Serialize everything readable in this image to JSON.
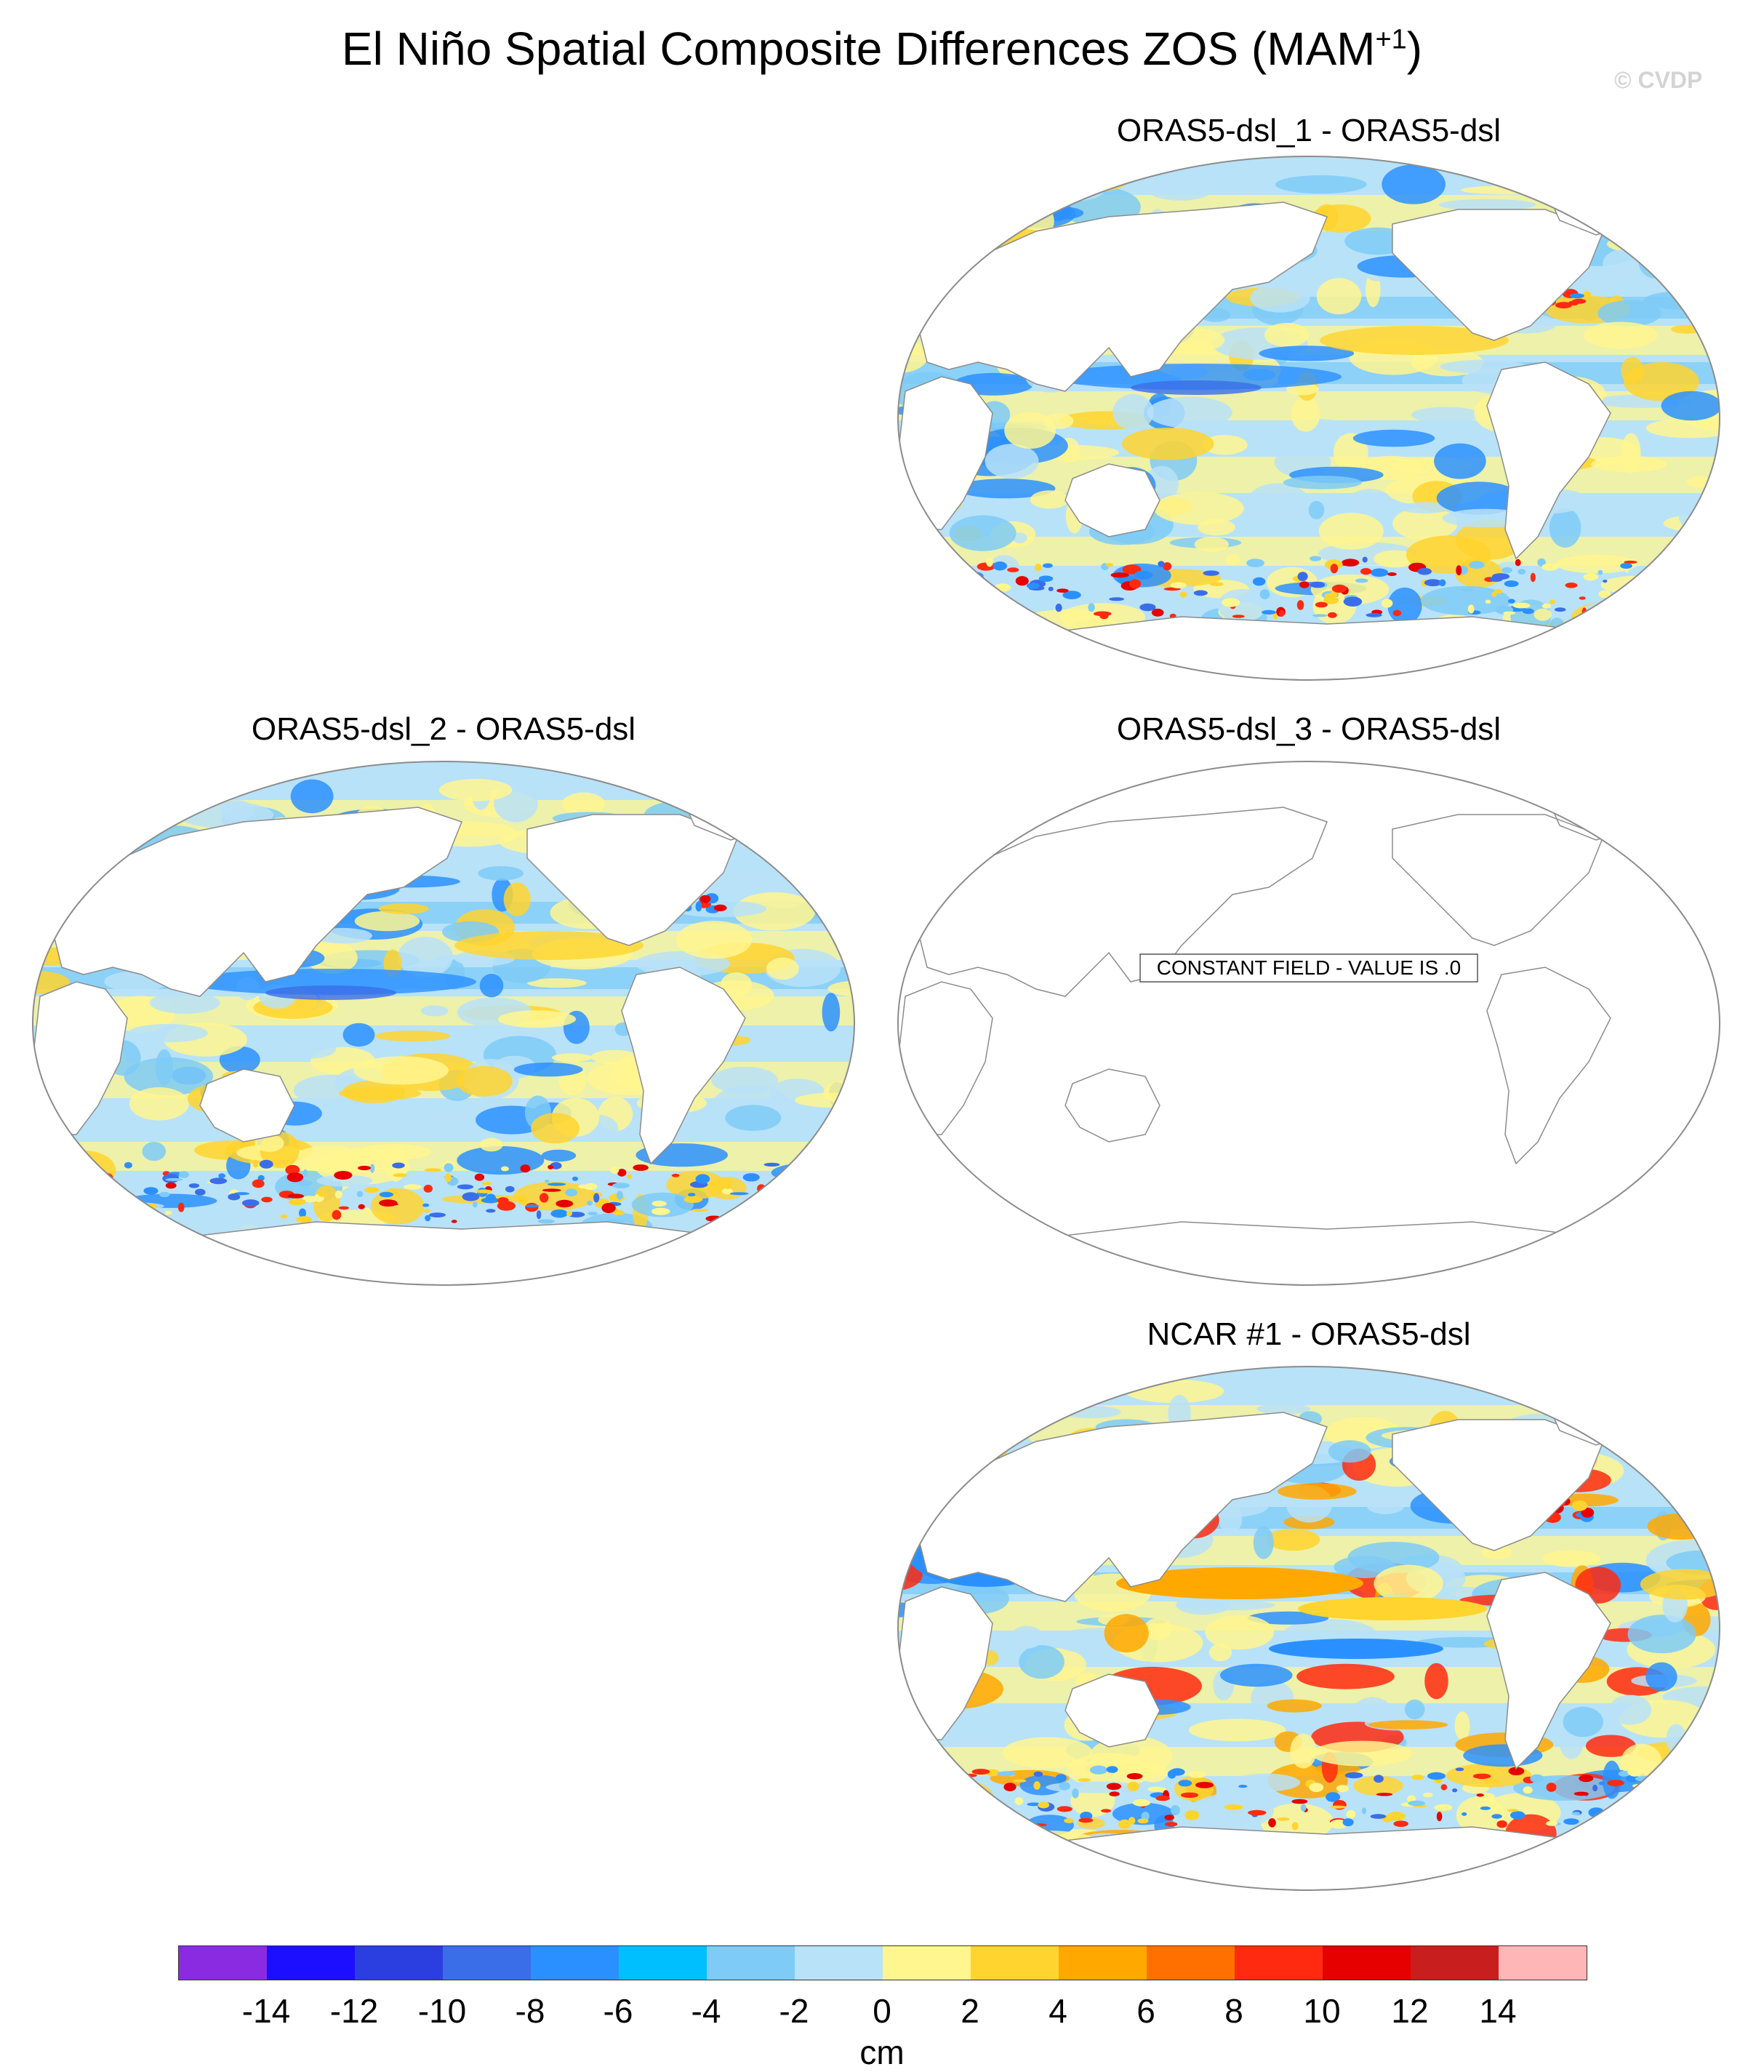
{
  "title": {
    "main": "El Niño Spatial Composite Differences ZOS (MAM",
    "superscript": "+1",
    "close": ")"
  },
  "watermark": "© CVDP",
  "panels": [
    {
      "id": "p1",
      "title": "ORAS5-dsl_1 - ORAS5-dsl",
      "state": "field"
    },
    {
      "id": "p2",
      "title": "ORAS5-dsl_2 - ORAS5-dsl",
      "state": "field"
    },
    {
      "id": "p3",
      "title": "ORAS5-dsl_3 - ORAS5-dsl",
      "state": "constant",
      "note": "CONSTANT FIELD - VALUE IS .0"
    },
    {
      "id": "p4",
      "title": "NCAR #1 - ORAS5-dsl",
      "state": "field"
    }
  ],
  "colorbar": {
    "unit": "cm",
    "labels": [
      "-14",
      "-12",
      "-10",
      "-8",
      "-6",
      "-4",
      "-2",
      "0",
      "2",
      "4",
      "6",
      "8",
      "10",
      "12",
      "14"
    ],
    "colors": [
      "#8a2be2",
      "#1c0fff",
      "#2b3fe0",
      "#3a6ee8",
      "#2b90ff",
      "#00bfff",
      "#7ecbf7",
      "#b8e2f8",
      "#fff68f",
      "#ffd42e",
      "#ffa800",
      "#ff7000",
      "#ff2a10",
      "#e60000",
      "#c81e1e",
      "#ffb6b6"
    ]
  }
}
